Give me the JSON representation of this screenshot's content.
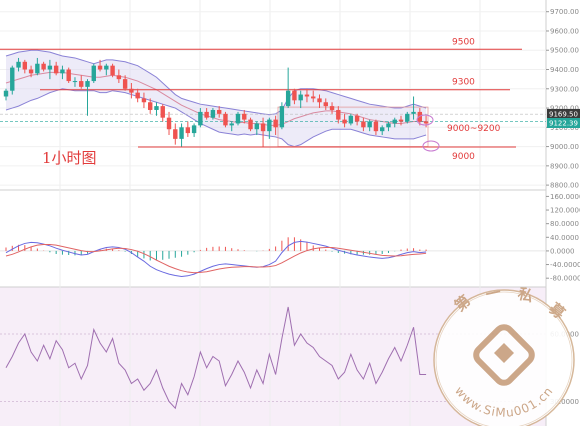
{
  "chart_data": {
    "type": "candlestick",
    "timeframe_label": "1小时图",
    "price_axis": {
      "ticks": [
        "9700.00",
        "9600.00",
        "9500.00",
        "9400.00",
        "9300.00",
        "9200.00",
        "9100.00",
        "9000.00",
        "8900.00",
        "8800.00"
      ],
      "ylim": [
        8785,
        9740
      ]
    },
    "current_price_labels": [
      {
        "text": "9169.50",
        "value": 9169.5,
        "color": "#3a3a3a"
      },
      {
        "text": "9122.39",
        "value": 9122.39,
        "color": "#26a69a"
      }
    ],
    "levels": [
      {
        "label": "9500",
        "value": 9505
      },
      {
        "label": "9300",
        "value": 9295
      },
      {
        "label": "9000",
        "value": 8998
      }
    ],
    "range_annotation": "9000~9200",
    "candles": [
      {
        "o": 9260,
        "h": 9300,
        "l": 9240,
        "c": 9290
      },
      {
        "o": 9290,
        "h": 9420,
        "l": 9270,
        "c": 9410
      },
      {
        "o": 9410,
        "h": 9460,
        "l": 9390,
        "c": 9440
      },
      {
        "o": 9440,
        "h": 9450,
        "l": 9380,
        "c": 9400
      },
      {
        "o": 9400,
        "h": 9420,
        "l": 9360,
        "c": 9380
      },
      {
        "o": 9380,
        "h": 9460,
        "l": 9370,
        "c": 9430
      },
      {
        "o": 9430,
        "h": 9440,
        "l": 9390,
        "c": 9400
      },
      {
        "o": 9400,
        "h": 9450,
        "l": 9350,
        "c": 9420
      },
      {
        "o": 9420,
        "h": 9440,
        "l": 9370,
        "c": 9380
      },
      {
        "o": 9380,
        "h": 9420,
        "l": 9350,
        "c": 9400
      },
      {
        "o": 9400,
        "h": 9410,
        "l": 9330,
        "c": 9340
      },
      {
        "o": 9340,
        "h": 9360,
        "l": 9310,
        "c": 9340
      },
      {
        "o": 9340,
        "h": 9370,
        "l": 9300,
        "c": 9310
      },
      {
        "o": 9310,
        "h": 9350,
        "l": 9160,
        "c": 9340
      },
      {
        "o": 9340,
        "h": 9430,
        "l": 9330,
        "c": 9420
      },
      {
        "o": 9420,
        "h": 9450,
        "l": 9390,
        "c": 9400
      },
      {
        "o": 9400,
        "h": 9430,
        "l": 9370,
        "c": 9420
      },
      {
        "o": 9420,
        "h": 9430,
        "l": 9360,
        "c": 9370
      },
      {
        "o": 9370,
        "h": 9400,
        "l": 9330,
        "c": 9350
      },
      {
        "o": 9350,
        "h": 9370,
        "l": 9290,
        "c": 9300
      },
      {
        "o": 9300,
        "h": 9330,
        "l": 9250,
        "c": 9280
      },
      {
        "o": 9280,
        "h": 9300,
        "l": 9230,
        "c": 9250
      },
      {
        "o": 9250,
        "h": 9280,
        "l": 9200,
        "c": 9230
      },
      {
        "o": 9230,
        "h": 9250,
        "l": 9170,
        "c": 9190
      },
      {
        "o": 9190,
        "h": 9230,
        "l": 9160,
        "c": 9210
      },
      {
        "o": 9210,
        "h": 9220,
        "l": 9130,
        "c": 9150
      },
      {
        "o": 9150,
        "h": 9180,
        "l": 9060,
        "c": 9090
      },
      {
        "o": 9090,
        "h": 9120,
        "l": 9010,
        "c": 9040
      },
      {
        "o": 9040,
        "h": 9120,
        "l": 9000,
        "c": 9100
      },
      {
        "o": 9100,
        "h": 9130,
        "l": 9050,
        "c": 9070
      },
      {
        "o": 9070,
        "h": 9120,
        "l": 9050,
        "c": 9110
      },
      {
        "o": 9110,
        "h": 9200,
        "l": 9100,
        "c": 9180
      },
      {
        "o": 9180,
        "h": 9200,
        "l": 9140,
        "c": 9150
      },
      {
        "o": 9150,
        "h": 9200,
        "l": 9140,
        "c": 9190
      },
      {
        "o": 9190,
        "h": 9210,
        "l": 9150,
        "c": 9170
      },
      {
        "o": 9170,
        "h": 9180,
        "l": 9100,
        "c": 9110
      },
      {
        "o": 9110,
        "h": 9130,
        "l": 9080,
        "c": 9120
      },
      {
        "o": 9120,
        "h": 9180,
        "l": 9110,
        "c": 9170
      },
      {
        "o": 9170,
        "h": 9190,
        "l": 9120,
        "c": 9140
      },
      {
        "o": 9140,
        "h": 9150,
        "l": 9080,
        "c": 9090
      },
      {
        "o": 9090,
        "h": 9130,
        "l": 9060,
        "c": 9120
      },
      {
        "o": 9120,
        "h": 9150,
        "l": 9000,
        "c": 9080
      },
      {
        "o": 9080,
        "h": 9150,
        "l": 9040,
        "c": 9140
      },
      {
        "o": 9140,
        "h": 9160,
        "l": 9060,
        "c": 9100
      },
      {
        "o": 9100,
        "h": 9230,
        "l": 9090,
        "c": 9210
      },
      {
        "o": 9210,
        "h": 9410,
        "l": 9200,
        "c": 9290
      },
      {
        "o": 9290,
        "h": 9300,
        "l": 9220,
        "c": 9240
      },
      {
        "o": 9240,
        "h": 9290,
        "l": 9200,
        "c": 9270
      },
      {
        "o": 9270,
        "h": 9300,
        "l": 9230,
        "c": 9260
      },
      {
        "o": 9260,
        "h": 9290,
        "l": 9230,
        "c": 9250
      },
      {
        "o": 9250,
        "h": 9270,
        "l": 9200,
        "c": 9230
      },
      {
        "o": 9230,
        "h": 9250,
        "l": 9190,
        "c": 9210
      },
      {
        "o": 9210,
        "h": 9230,
        "l": 9170,
        "c": 9190
      },
      {
        "o": 9190,
        "h": 9210,
        "l": 9120,
        "c": 9140
      },
      {
        "o": 9140,
        "h": 9170,
        "l": 9100,
        "c": 9120
      },
      {
        "o": 9120,
        "h": 9170,
        "l": 9110,
        "c": 9160
      },
      {
        "o": 9160,
        "h": 9170,
        "l": 9110,
        "c": 9130
      },
      {
        "o": 9130,
        "h": 9150,
        "l": 9080,
        "c": 9100
      },
      {
        "o": 9100,
        "h": 9140,
        "l": 9080,
        "c": 9130
      },
      {
        "o": 9130,
        "h": 9140,
        "l": 9060,
        "c": 9080
      },
      {
        "o": 9080,
        "h": 9110,
        "l": 9060,
        "c": 9100
      },
      {
        "o": 9100,
        "h": 9130,
        "l": 9080,
        "c": 9120
      },
      {
        "o": 9120,
        "h": 9150,
        "l": 9100,
        "c": 9140
      },
      {
        "o": 9140,
        "h": 9160,
        "l": 9110,
        "c": 9130
      },
      {
        "o": 9130,
        "h": 9180,
        "l": 9120,
        "c": 9170
      },
      {
        "o": 9170,
        "h": 9260,
        "l": 9140,
        "c": 9180
      },
      {
        "o": 9180,
        "h": 9200,
        "l": 9110,
        "c": 9130
      },
      {
        "o": 9130,
        "h": 9160,
        "l": 9100,
        "c": 9120
      }
    ],
    "bollinger": {
      "upper": [
        9470,
        9480,
        9490,
        9495,
        9500,
        9500,
        9495,
        9490,
        9480,
        9470,
        9465,
        9460,
        9450,
        9440,
        9430,
        9440,
        9450,
        9450,
        9445,
        9440,
        9430,
        9420,
        9400,
        9380,
        9360,
        9330,
        9300,
        9270,
        9250,
        9240,
        9230,
        9220,
        9215,
        9210,
        9205,
        9200,
        9195,
        9190,
        9185,
        9180,
        9175,
        9170,
        9165,
        9170,
        9190,
        9250,
        9290,
        9300,
        9300,
        9300,
        9295,
        9290,
        9280,
        9270,
        9260,
        9250,
        9240,
        9230,
        9220,
        9215,
        9210,
        9205,
        9200,
        9200,
        9210,
        9220,
        9210,
        9200
      ],
      "middle": [
        9330,
        9340,
        9350,
        9360,
        9370,
        9375,
        9380,
        9385,
        9385,
        9385,
        9380,
        9375,
        9370,
        9365,
        9360,
        9360,
        9365,
        9370,
        9365,
        9360,
        9350,
        9340,
        9325,
        9310,
        9295,
        9275,
        9255,
        9235,
        9215,
        9200,
        9185,
        9170,
        9160,
        9150,
        9140,
        9135,
        9130,
        9125,
        9125,
        9120,
        9120,
        9115,
        9110,
        9110,
        9115,
        9130,
        9145,
        9155,
        9165,
        9175,
        9180,
        9185,
        9185,
        9180,
        9175,
        9170,
        9160,
        9150,
        9140,
        9135,
        9130,
        9125,
        9120,
        9120,
        9125,
        9130,
        9130,
        9130
      ],
      "lower": [
        9190,
        9200,
        9210,
        9225,
        9240,
        9250,
        9265,
        9280,
        9290,
        9300,
        9295,
        9290,
        9290,
        9290,
        9290,
        9280,
        9280,
        9290,
        9285,
        9280,
        9270,
        9260,
        9250,
        9240,
        9230,
        9220,
        9210,
        9200,
        9180,
        9160,
        9140,
        9120,
        9105,
        9090,
        9075,
        9070,
        9065,
        9060,
        9065,
        9060,
        9065,
        9060,
        9055,
        9050,
        9040,
        9010,
        9000,
        9010,
        9030,
        9050,
        9065,
        9080,
        9090,
        9090,
        9090,
        9090,
        9080,
        9070,
        9060,
        9055,
        9050,
        9045,
        9040,
        9040,
        9040,
        9040,
        9050,
        9060
      ]
    },
    "macd_panel": {
      "ticks": [
        "160.0000",
        "120.0000",
        "80.0000",
        "40.0000",
        "0.0000",
        "-40.0000",
        "-80.0000"
      ],
      "ylim": [
        -100,
        170
      ],
      "macd": [
        -5,
        5,
        15,
        22,
        25,
        24,
        20,
        15,
        8,
        2,
        -3,
        -8,
        -12,
        -10,
        -2,
        5,
        10,
        12,
        10,
        5,
        -5,
        -18,
        -30,
        -45,
        -55,
        -62,
        -68,
        -72,
        -75,
        -73,
        -68,
        -60,
        -52,
        -45,
        -40,
        -38,
        -40,
        -42,
        -44,
        -46,
        -48,
        -46,
        -40,
        -30,
        -5,
        15,
        25,
        28,
        26,
        22,
        18,
        14,
        8,
        2,
        -3,
        -8,
        -12,
        -15,
        -18,
        -20,
        -22,
        -20,
        -16,
        -10,
        -5,
        -2,
        -5,
        -3
      ],
      "signal": [
        -15,
        -10,
        -3,
        5,
        12,
        17,
        19,
        19,
        17,
        13,
        9,
        5,
        1,
        -2,
        -2,
        0,
        3,
        6,
        8,
        7,
        4,
        -1,
        -8,
        -17,
        -27,
        -36,
        -45,
        -52,
        -58,
        -62,
        -64,
        -63,
        -61,
        -57,
        -53,
        -50,
        -48,
        -47,
        -46,
        -46,
        -47,
        -47,
        -46,
        -43,
        -35,
        -25,
        -15,
        -6,
        1,
        6,
        9,
        10,
        10,
        8,
        5,
        2,
        -1,
        -4,
        -7,
        -10,
        -13,
        -14,
        -15,
        -14,
        -12,
        -10,
        -9,
        -7
      ]
    },
    "rsi_panel": {
      "ticks": [
        "60.0000",
        "30.0000"
      ],
      "ylim": [
        20,
        80
      ],
      "values": [
        45,
        50,
        56,
        60,
        52,
        48,
        55,
        49,
        57,
        53,
        45,
        47,
        40,
        46,
        62,
        56,
        52,
        58,
        47,
        44,
        38,
        40,
        35,
        38,
        44,
        36,
        30,
        27,
        38,
        33,
        41,
        52,
        45,
        50,
        48,
        37,
        42,
        48,
        43,
        36,
        44,
        38,
        51,
        42,
        58,
        72,
        55,
        60,
        56,
        54,
        50,
        48,
        46,
        40,
        43,
        51,
        44,
        40,
        47,
        38,
        43,
        49,
        54,
        48,
        55,
        63,
        42,
        42
      ]
    }
  },
  "watermark": {
    "chars": [
      "第",
      "一",
      "私",
      "募"
    ],
    "url": "www.SiMu001.cn"
  }
}
